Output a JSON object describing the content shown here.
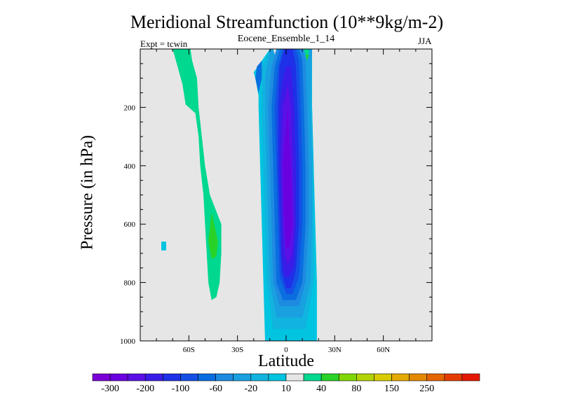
{
  "chart_data": {
    "type": "contour",
    "title": "Meridional Streamfunction (10**9kg/m-2)",
    "subtitle_center": "Eocene_Ensemble_1_14",
    "subtitle_left": "Expt = tcwin",
    "subtitle_right": "JJA",
    "xlabel": "Latitude",
    "ylabel": "Pressure (in hPa)",
    "xlim": [
      -90,
      90
    ],
    "ylim": [
      1000,
      0
    ],
    "x_ticks": [
      {
        "value": -60,
        "label": "60S"
      },
      {
        "value": -30,
        "label": "30S"
      },
      {
        "value": 0,
        "label": "0"
      },
      {
        "value": 30,
        "label": "30N"
      },
      {
        "value": 60,
        "label": "60N"
      }
    ],
    "y_ticks": [
      {
        "value": 200,
        "label": "200"
      },
      {
        "value": 400,
        "label": "400"
      },
      {
        "value": 600,
        "label": "600"
      },
      {
        "value": 800,
        "label": "800"
      },
      {
        "value": 1000,
        "label": "1000"
      }
    ],
    "background_color": "#e6e6e6",
    "colorbar": {
      "colors": [
        "#7a00d6",
        "#6a00e0",
        "#5a10e6",
        "#3a1ce8",
        "#1e30e8",
        "#1450e6",
        "#0a6ee0",
        "#1e8ae0",
        "#18a0e0",
        "#10b4de",
        "#00c4e0",
        "#e6e6e6",
        "#00d890",
        "#28d228",
        "#80d800",
        "#b4d400",
        "#d8cc00",
        "#e4aa00",
        "#e48800",
        "#e46400",
        "#e43c00",
        "#e41800"
      ],
      "labels": [
        {
          "after_box": 1,
          "label": "-300"
        },
        {
          "after_box": 3,
          "label": "-200"
        },
        {
          "after_box": 5,
          "label": "-100"
        },
        {
          "after_box": 7,
          "label": "-60"
        },
        {
          "after_box": 9,
          "label": "-20"
        },
        {
          "after_box": 11,
          "label": "10"
        },
        {
          "after_box": 13,
          "label": "40"
        },
        {
          "after_box": 15,
          "label": "80"
        },
        {
          "after_box": 17,
          "label": "150"
        },
        {
          "after_box": 19,
          "label": "250"
        }
      ]
    },
    "contours": [
      {
        "color": "#00c4e0",
        "points": [
          [
            -10,
            0
          ],
          [
            -8,
            0
          ],
          [
            -7,
            20
          ],
          [
            -4,
            20
          ],
          [
            -3,
            0
          ],
          [
            11,
            0
          ],
          [
            12,
            20
          ],
          [
            14,
            20
          ],
          [
            14,
            0
          ],
          [
            16,
            0
          ],
          [
            16,
            200
          ],
          [
            17,
            400
          ],
          [
            18,
            600
          ],
          [
            19,
            800
          ],
          [
            19,
            1000
          ],
          [
            -13,
            1000
          ],
          [
            -14,
            800
          ],
          [
            -15,
            600
          ],
          [
            -16,
            400
          ],
          [
            -17,
            200
          ],
          [
            -17,
            160
          ],
          [
            -19,
            100
          ],
          [
            -20,
            80
          ],
          [
            -15,
            40
          ]
        ]
      },
      {
        "color": "#10b4de",
        "points": [
          [
            -10,
            0
          ],
          [
            -8,
            0
          ],
          [
            -7,
            20
          ],
          [
            -4,
            20
          ],
          [
            -3,
            0
          ],
          [
            11,
            0
          ],
          [
            12,
            20
          ],
          [
            14,
            20
          ],
          [
            14,
            0
          ],
          [
            16,
            0
          ],
          [
            16,
            200
          ],
          [
            17,
            400
          ],
          [
            17,
            600
          ],
          [
            17,
            800
          ],
          [
            12,
            960
          ],
          [
            -8,
            960
          ],
          [
            -12,
            800
          ],
          [
            -13,
            600
          ],
          [
            -14,
            400
          ],
          [
            -15,
            200
          ],
          [
            -15,
            120
          ],
          [
            -15,
            60
          ],
          [
            -13,
            40
          ]
        ]
      },
      {
        "color": "#18a0e0",
        "points": [
          [
            -10,
            0
          ],
          [
            -8,
            0
          ],
          [
            -7,
            20
          ],
          [
            -4,
            20
          ],
          [
            -3,
            0
          ],
          [
            11,
            0
          ],
          [
            12,
            20
          ],
          [
            14,
            20
          ],
          [
            14,
            0
          ],
          [
            16,
            0
          ],
          [
            15,
            200
          ],
          [
            16,
            400
          ],
          [
            16,
            600
          ],
          [
            15,
            800
          ],
          [
            10,
            920
          ],
          [
            -6,
            920
          ],
          [
            -10,
            800
          ],
          [
            -11,
            600
          ],
          [
            -12,
            400
          ],
          [
            -13,
            200
          ],
          [
            -13,
            100
          ],
          [
            -12,
            60
          ],
          [
            -11,
            40
          ]
        ]
      },
      {
        "color": "#1e8ae0",
        "points": [
          [
            -6,
            0
          ],
          [
            10,
            0
          ],
          [
            12,
            40
          ],
          [
            13,
            200
          ],
          [
            14,
            400
          ],
          [
            14,
            600
          ],
          [
            12,
            800
          ],
          [
            8,
            880
          ],
          [
            -4,
            880
          ],
          [
            -8,
            800
          ],
          [
            -9,
            600
          ],
          [
            -10,
            400
          ],
          [
            -11,
            200
          ],
          [
            -9,
            60
          ]
        ]
      },
      {
        "color": "#0a6ee0",
        "points": [
          [
            -4,
            0
          ],
          [
            8,
            0
          ],
          [
            10,
            40
          ],
          [
            11,
            200
          ],
          [
            12,
            400
          ],
          [
            12,
            600
          ],
          [
            10,
            800
          ],
          [
            6,
            860
          ],
          [
            -2,
            860
          ],
          [
            -6,
            800
          ],
          [
            -7,
            600
          ],
          [
            -8,
            400
          ],
          [
            -9,
            200
          ],
          [
            -7,
            60
          ]
        ]
      },
      {
        "color": "#1450e6",
        "points": [
          [
            -2,
            0
          ],
          [
            6,
            0
          ],
          [
            8,
            40
          ],
          [
            9,
            200
          ],
          [
            10,
            400
          ],
          [
            10,
            600
          ],
          [
            8,
            780
          ],
          [
            4,
            840
          ],
          [
            0,
            840
          ],
          [
            -4,
            780
          ],
          [
            -5,
            600
          ],
          [
            -6,
            400
          ],
          [
            -7,
            200
          ],
          [
            -5,
            60
          ]
        ]
      },
      {
        "color": "#1e30e8",
        "points": [
          [
            -1,
            0
          ],
          [
            4,
            0
          ],
          [
            6,
            60
          ],
          [
            7,
            200
          ],
          [
            8,
            400
          ],
          [
            8,
            600
          ],
          [
            6,
            760
          ],
          [
            3,
            820
          ],
          [
            0,
            820
          ],
          [
            -3,
            760
          ],
          [
            -4,
            600
          ],
          [
            -5,
            400
          ],
          [
            -5,
            200
          ],
          [
            -4,
            60
          ]
        ]
      },
      {
        "color": "#3a1ce8",
        "points": [
          [
            0,
            60
          ],
          [
            3,
            60
          ],
          [
            5,
            200
          ],
          [
            6,
            400
          ],
          [
            6,
            600
          ],
          [
            5,
            740
          ],
          [
            2,
            780
          ],
          [
            -1,
            780
          ],
          [
            -3,
            700
          ],
          [
            -3,
            600
          ],
          [
            -4,
            400
          ],
          [
            -4,
            200
          ],
          [
            -2,
            100
          ]
        ]
      },
      {
        "color": "#5a10e6",
        "points": [
          [
            1,
            120
          ],
          [
            3,
            200
          ],
          [
            4,
            400
          ],
          [
            5,
            600
          ],
          [
            4,
            700
          ],
          [
            1,
            740
          ],
          [
            -1,
            700
          ],
          [
            -2,
            600
          ],
          [
            -3,
            400
          ],
          [
            -2,
            200
          ]
        ]
      },
      {
        "color": "#6a00e0",
        "points": [
          [
            1,
            200
          ],
          [
            2,
            300
          ],
          [
            3,
            400
          ],
          [
            4,
            600
          ],
          [
            2,
            680
          ],
          [
            0,
            680
          ],
          [
            -1,
            600
          ],
          [
            -2,
            400
          ],
          [
            0,
            260
          ]
        ]
      },
      {
        "color": "#0a6ee0",
        "points": [
          [
            -15,
            40
          ],
          [
            -15,
            100
          ],
          [
            -17,
            150
          ],
          [
            -19,
            100
          ],
          [
            -18,
            60
          ]
        ]
      },
      {
        "color": "#00d890",
        "points": [
          [
            -70,
            0
          ],
          [
            -59,
            0
          ],
          [
            -58,
            40
          ],
          [
            -55,
            100
          ],
          [
            -54,
            200
          ],
          [
            -52,
            300
          ],
          [
            -50,
            400
          ],
          [
            -47,
            500
          ],
          [
            -40,
            600
          ],
          [
            -40,
            700
          ],
          [
            -41,
            800
          ],
          [
            -43,
            850
          ],
          [
            -46,
            860
          ],
          [
            -48,
            800
          ],
          [
            -49,
            700
          ],
          [
            -50,
            600
          ],
          [
            -51,
            500
          ],
          [
            -53,
            400
          ],
          [
            -54,
            300
          ],
          [
            -56,
            220
          ],
          [
            -62,
            190
          ],
          [
            -64,
            120
          ],
          [
            -67,
            60
          ]
        ]
      },
      {
        "color": "#00c4e0",
        "points": [
          [
            -77,
            660
          ],
          [
            -74,
            660
          ],
          [
            -74,
            690
          ],
          [
            -77,
            690
          ]
        ]
      },
      {
        "color": "#28d228",
        "points": [
          [
            -46,
            560
          ],
          [
            -42,
            660
          ],
          [
            -43,
            710
          ],
          [
            -46,
            720
          ],
          [
            -48,
            660
          ]
        ]
      },
      {
        "color": "#00d890",
        "points": [
          [
            11,
            0
          ],
          [
            14,
            0
          ],
          [
            14,
            20
          ],
          [
            12,
            20
          ]
        ]
      },
      {
        "color": "#28d228",
        "points": [
          [
            12,
            20
          ],
          [
            14,
            20
          ],
          [
            13,
            40
          ]
        ]
      }
    ]
  }
}
